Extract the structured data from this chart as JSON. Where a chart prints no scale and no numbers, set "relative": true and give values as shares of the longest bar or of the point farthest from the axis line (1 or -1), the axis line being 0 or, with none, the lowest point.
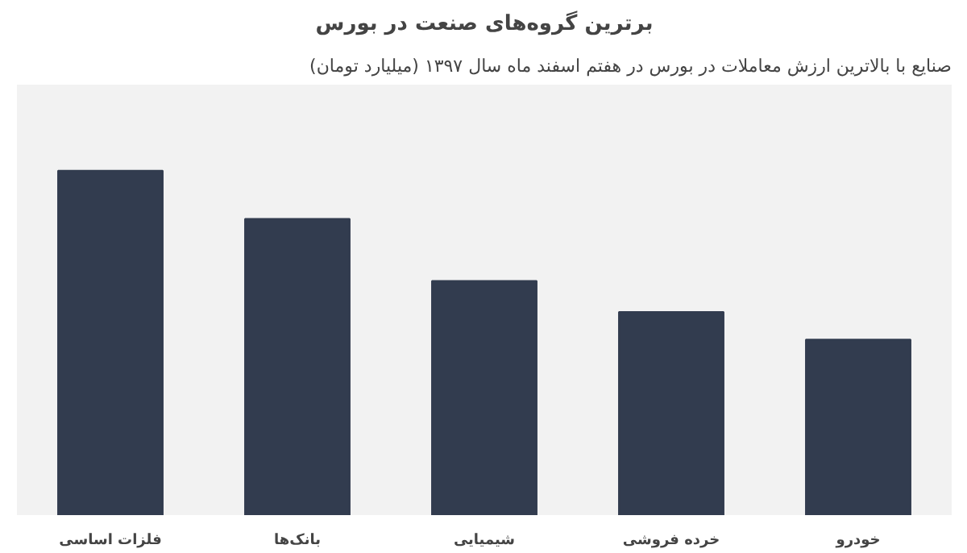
{
  "chart_data": {
    "type": "bar",
    "title": "برترین گروه‌های صنعت در بورس",
    "subtitle": "صنایع با بالاترین ارزش معاملات در بورس در هفتم اسفند ماه سال ۱۳۹۷ (میلیارد تومان)",
    "categories": [
      "فلزات اساسی",
      "بانک‌ها",
      "شیمیایی",
      "خرده فروشی",
      "خودرو"
    ],
    "values": [
      1,
      0.86,
      0.68,
      0.59,
      0.51
    ],
    "color": "#323c4f",
    "relative": true
  }
}
